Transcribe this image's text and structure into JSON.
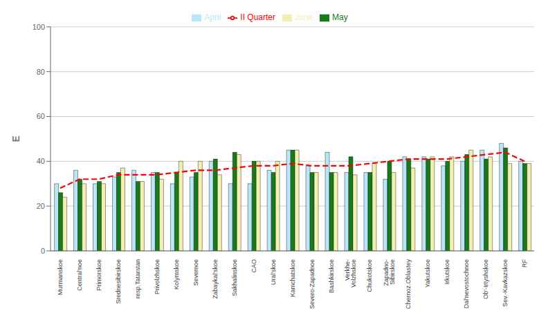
{
  "chart_data": {
    "type": "bar",
    "ylabel": "E",
    "categories": [
      "Murmanskoe",
      "Central'noe",
      "Primorskoe",
      "Srednesibirskoe",
      "resp.Tatarstan",
      "Privolzhskoe",
      "Kolymskoe",
      "Severnoe",
      "Zabaykal'skoe",
      "Sakhalinskoe",
      "CAO",
      "Ural'skoe",
      "Kamchatskoe",
      "Severo-Zapadnoe",
      "Bashkirskoe",
      "Verkhe-\nVolzhskoe",
      "Chukotskoe",
      "Zapadno-\nSibirskoe",
      "Chernoz.Oblastey",
      "Yakutskoe",
      "Irkutskoe",
      "Dal'nevostochnoe",
      "Ob'-Irtyshskoe",
      "Sev.-Kavkazskoe",
      "RF"
    ],
    "series": [
      {
        "name": "April",
        "color": "#b8e8f8",
        "values": [
          30,
          36,
          30,
          33,
          36,
          35,
          30,
          33,
          40,
          30,
          30,
          36,
          45,
          38,
          44,
          35,
          35,
          32,
          42,
          42,
          38,
          40,
          45,
          48,
          40
        ]
      },
      {
        "name": "May",
        "color": "#1a7a1a",
        "values": [
          26,
          32,
          31,
          35,
          31,
          35,
          35,
          35,
          41,
          44,
          40,
          35,
          45,
          35,
          35,
          42,
          35,
          40,
          41,
          41,
          40,
          43,
          41,
          46,
          39
        ]
      },
      {
        "name": "June",
        "color": "#f0f0b0",
        "values": [
          24,
          30,
          30,
          37,
          31,
          32,
          40,
          40,
          34,
          43,
          40,
          40,
          45,
          35,
          35,
          34,
          39,
          35,
          37,
          42,
          42,
          45,
          42,
          39,
          39
        ]
      },
      {
        "name": "II Quarter",
        "type": "line",
        "color": "#ff0000",
        "line_style": "dashed",
        "values": [
          28,
          32,
          32,
          34,
          34,
          34,
          35,
          36,
          36,
          37,
          38,
          38,
          39,
          38,
          38,
          38,
          39,
          40,
          41,
          41,
          41,
          42,
          43,
          44,
          40
        ]
      }
    ],
    "ylim": [
      0,
      100
    ],
    "yticks": [
      0,
      20,
      40,
      60,
      80,
      100
    ],
    "grid": true,
    "legend": "top"
  }
}
